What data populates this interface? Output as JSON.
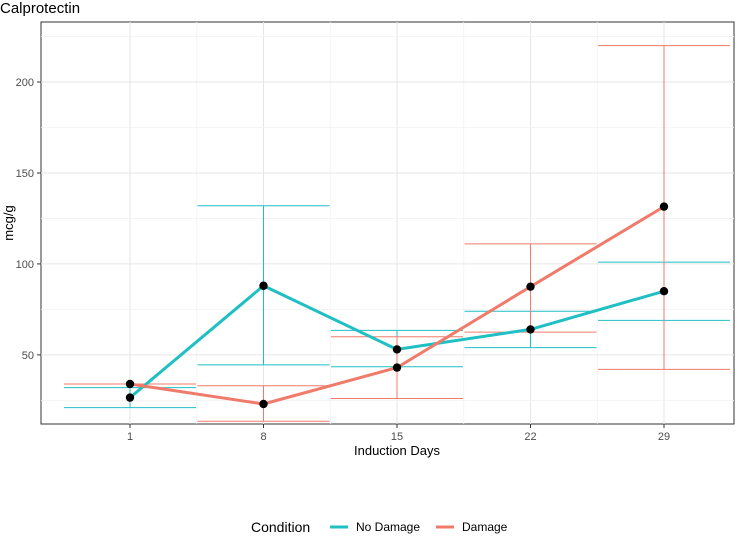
{
  "chart_data": {
    "type": "line",
    "title": "Calprotectin",
    "xlabel": "Induction Days",
    "ylabel": "mcg/g",
    "x": [
      1,
      8,
      15,
      22,
      29
    ],
    "ylim": [
      12,
      233
    ],
    "yticks": [
      50,
      100,
      150,
      200
    ],
    "grid": true,
    "legend": {
      "title": "Condition",
      "position": "bottom"
    },
    "series": [
      {
        "name": "No Damage",
        "color": "#1fbfc4",
        "values": [
          26.5,
          88,
          53,
          64,
          85
        ],
        "error_low": [
          21,
          44.5,
          43.5,
          54,
          69
        ],
        "error_high": [
          32,
          132,
          63.5,
          74,
          101
        ]
      },
      {
        "name": "Damage",
        "color": "#f07b6a",
        "values": [
          34,
          23,
          43,
          87.5,
          131.5
        ],
        "error_low": [
          34,
          13.5,
          26,
          62.5,
          42
        ],
        "error_high": [
          34,
          33,
          60,
          111,
          220
        ]
      }
    ]
  }
}
